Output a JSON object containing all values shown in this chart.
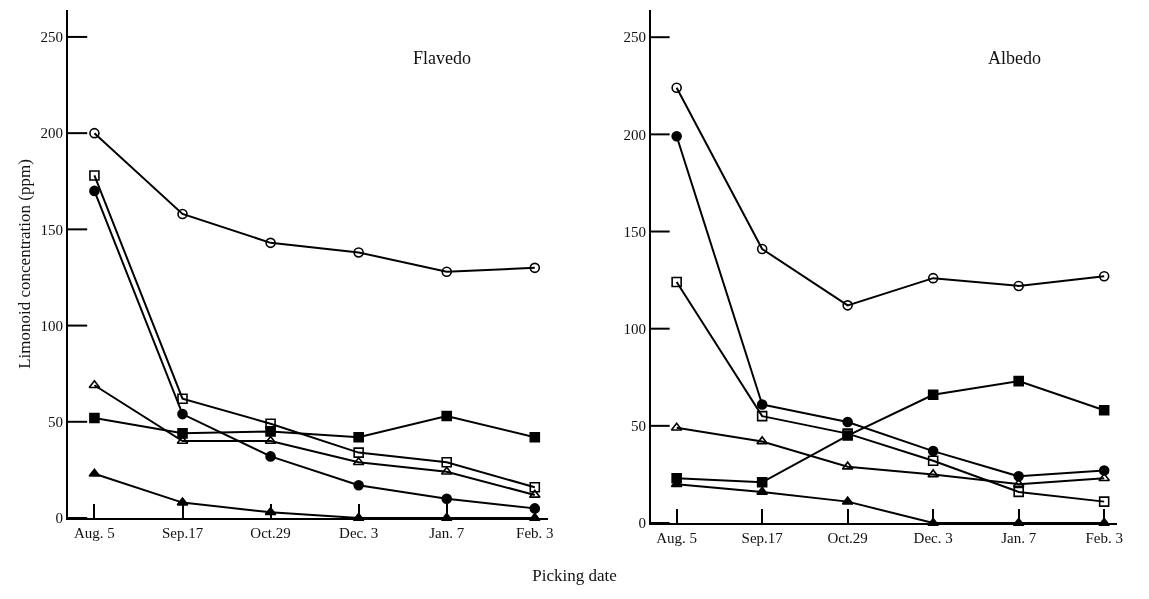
{
  "chart_data": [
    {
      "type": "line",
      "title": "Flavedo",
      "ylabel": "Limonoid concentration (ppm)",
      "xlabel": "Picking date",
      "categories": [
        "Aug. 5",
        "Sep.17",
        "Oct.29",
        "Dec. 3",
        "Jan. 7",
        "Feb. 3"
      ],
      "ylim": [
        0,
        264
      ],
      "yticks": [
        0,
        50,
        100,
        150,
        200,
        250
      ],
      "grid": false,
      "series": [
        {
          "color": "#000000",
          "marker": "circle-open",
          "values": [
            200,
            158,
            143,
            138,
            128,
            130
          ]
        },
        {
          "color": "#000000",
          "marker": "circle",
          "values": [
            170,
            54,
            32,
            17,
            10,
            5
          ]
        },
        {
          "color": "#000000",
          "marker": "square-open",
          "values": [
            178,
            62,
            49,
            34,
            29,
            16
          ]
        },
        {
          "color": "#000000",
          "marker": "square",
          "values": [
            52,
            44,
            45,
            42,
            53,
            42
          ]
        },
        {
          "color": "#000000",
          "marker": "triangle-open",
          "values": [
            69,
            40,
            40,
            29,
            24,
            12
          ]
        },
        {
          "color": "#000000",
          "marker": "triangle",
          "values": [
            23,
            8,
            3,
            0,
            0,
            0
          ]
        }
      ]
    },
    {
      "type": "line",
      "title": "Albedo",
      "categories": [
        "Aug. 5",
        "Sep.17",
        "Oct.29",
        "Dec. 3",
        "Jan. 7",
        "Feb. 3"
      ],
      "ylim": [
        0,
        264
      ],
      "yticks": [
        0,
        50,
        100,
        150,
        200,
        250
      ],
      "grid": false,
      "series": [
        {
          "color": "#000000",
          "marker": "circle-open",
          "values": [
            224,
            141,
            112,
            126,
            122,
            127
          ]
        },
        {
          "color": "#000000",
          "marker": "circle",
          "values": [
            199,
            61,
            52,
            37,
            24,
            27
          ]
        },
        {
          "color": "#000000",
          "marker": "square-open",
          "values": [
            124,
            55,
            46,
            32,
            16,
            11
          ]
        },
        {
          "color": "#000000",
          "marker": "square",
          "values": [
            23,
            21,
            45,
            66,
            73,
            58
          ]
        },
        {
          "color": "#000000",
          "marker": "triangle-open",
          "values": [
            49,
            42,
            29,
            25,
            20,
            23
          ]
        },
        {
          "color": "#000000",
          "marker": "triangle",
          "values": [
            20,
            16,
            11,
            0,
            0,
            0
          ]
        }
      ]
    }
  ]
}
